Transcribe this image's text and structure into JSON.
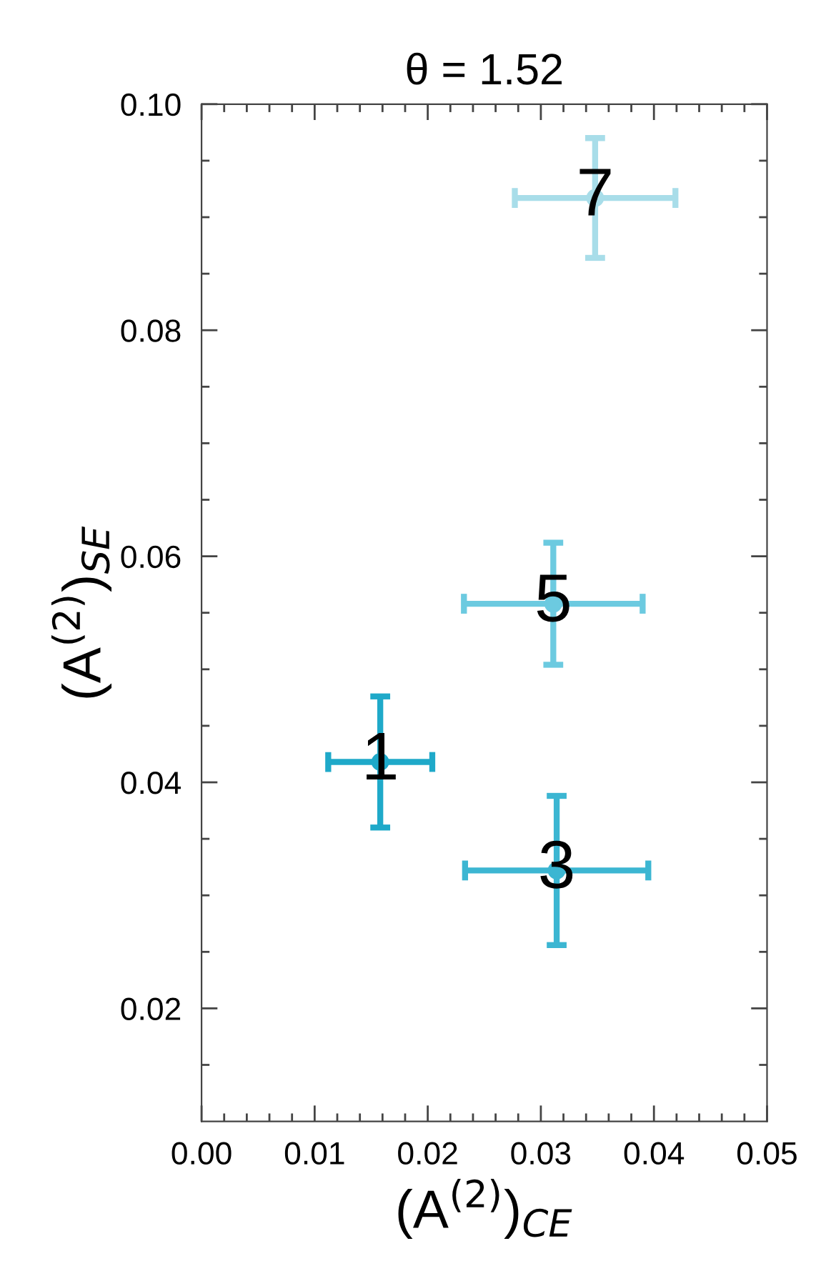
{
  "chart_data": {
    "type": "scatter",
    "title": "θ = 1.52",
    "xlabel": "(A$^{(2)}$)$_{CE}$",
    "ylabel": "(A$^{(2)}$)$_{SE}$",
    "series": [
      {
        "x": [
          0.0158,
          0.0314,
          0.0311,
          0.0348
        ],
        "values": [
          0.0418,
          0.0322,
          0.0558,
          0.0917
        ],
        "xerrors": [
          0.0046,
          0.0081,
          0.0079,
          0.0071
        ],
        "errors": [
          0.0058,
          0.0066,
          0.0054,
          0.0053
        ],
        "colors": [
          "#1fa9c9",
          "#3cb6d2",
          "#6ccae0",
          "#a8dde9"
        ]
      }
    ],
    "marker": "circle",
    "annotations": [
      {
        "text": "1",
        "x": 0.0158,
        "y": 0.0418
      },
      {
        "text": "3",
        "x": 0.0314,
        "y": 0.0322
      },
      {
        "text": "5",
        "x": 0.0311,
        "y": 0.0558
      },
      {
        "text": "7",
        "x": 0.0348,
        "y": 0.0917
      }
    ],
    "xlim": [
      0,
      0.05
    ],
    "ylim": [
      0.01,
      0.1
    ],
    "xticks": [
      {
        "value": 0,
        "label": "0.00"
      },
      {
        "value": 0.002,
        "label": null
      },
      {
        "value": 0.004,
        "label": null
      },
      {
        "value": 0.006,
        "label": null
      },
      {
        "value": 0.008,
        "label": null
      },
      {
        "value": 0.01,
        "label": "0.01"
      },
      {
        "value": 0.012,
        "label": null
      },
      {
        "value": 0.014,
        "label": null
      },
      {
        "value": 0.016,
        "label": null
      },
      {
        "value": 0.018,
        "label": null
      },
      {
        "value": 0.02,
        "label": "0.02"
      },
      {
        "value": 0.022,
        "label": null
      },
      {
        "value": 0.024,
        "label": null
      },
      {
        "value": 0.026,
        "label": null
      },
      {
        "value": 0.028,
        "label": null
      },
      {
        "value": 0.03,
        "label": "0.03"
      },
      {
        "value": 0.032,
        "label": null
      },
      {
        "value": 0.034,
        "label": null
      },
      {
        "value": 0.036,
        "label": null
      },
      {
        "value": 0.038,
        "label": null
      },
      {
        "value": 0.04,
        "label": "0.04"
      },
      {
        "value": 0.042,
        "label": null
      },
      {
        "value": 0.044,
        "label": null
      },
      {
        "value": 0.046,
        "label": null
      },
      {
        "value": 0.048,
        "label": null
      },
      {
        "value": 0.05,
        "label": "0.05"
      }
    ],
    "yticks": [
      {
        "value": 0.015,
        "label": null
      },
      {
        "value": 0.02,
        "label": "0.02"
      },
      {
        "value": 0.025,
        "label": null
      },
      {
        "value": 0.03,
        "label": null
      },
      {
        "value": 0.035,
        "label": null
      },
      {
        "value": 0.04,
        "label": "0.04"
      },
      {
        "value": 0.045,
        "label": null
      },
      {
        "value": 0.05,
        "label": null
      },
      {
        "value": 0.055,
        "label": null
      },
      {
        "value": 0.06,
        "label": "0.06"
      },
      {
        "value": 0.065,
        "label": null
      },
      {
        "value": 0.07,
        "label": null
      },
      {
        "value": 0.075,
        "label": null
      },
      {
        "value": 0.08,
        "label": "0.08"
      },
      {
        "value": 0.085,
        "label": null
      },
      {
        "value": 0.09,
        "label": null
      },
      {
        "value": 0.095,
        "label": null
      },
      {
        "value": 0.1,
        "label": "0.10"
      }
    ],
    "grid": false,
    "legend": false
  }
}
